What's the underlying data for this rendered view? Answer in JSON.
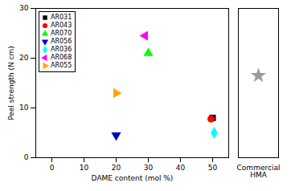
{
  "chart_data": [
    {
      "type": "scatter",
      "xlabel": "DAME content (mol %)",
      "ylabel": "Peel strength (N cm)",
      "xlim": [
        -5,
        55
      ],
      "ylim": [
        0,
        30
      ],
      "xticks": [
        0,
        10,
        20,
        30,
        40,
        50
      ],
      "yticks": [
        0,
        10,
        20,
        30
      ],
      "legend": "upper left",
      "series": [
        {
          "name": "AR031",
          "color": "black",
          "marker": "square",
          "x": [
            50
          ],
          "values": [
            8.0
          ]
        },
        {
          "name": "AR043",
          "color": "red",
          "marker": "circle",
          "x": [
            49.5
          ],
          "values": [
            7.8
          ]
        },
        {
          "name": "AR070",
          "color": "lime",
          "marker": "triangle-up",
          "x": [
            30
          ],
          "values": [
            21.0
          ]
        },
        {
          "name": "AR056",
          "color": "#0000cc",
          "marker": "triangle-down",
          "x": [
            20
          ],
          "values": [
            4.5
          ]
        },
        {
          "name": "AR036",
          "color": "cyan",
          "marker": "diamond",
          "x": [
            50.5
          ],
          "values": [
            5.0
          ]
        },
        {
          "name": "AR068",
          "color": "magenta",
          "marker": "triangle-left",
          "x": [
            29
          ],
          "values": [
            24.5
          ]
        },
        {
          "name": "AR055",
          "color": "orange",
          "marker": "triangle-right",
          "x": [
            20
          ],
          "values": [
            13.0
          ]
        }
      ]
    },
    {
      "type": "scatter",
      "categories": [
        "Commercial\nHMA"
      ],
      "ylim": [
        0,
        30
      ],
      "tick_labels": "x",
      "series": [
        {
          "color": "#999999",
          "marker": "star",
          "values": [
            16.5
          ]
        }
      ]
    }
  ]
}
